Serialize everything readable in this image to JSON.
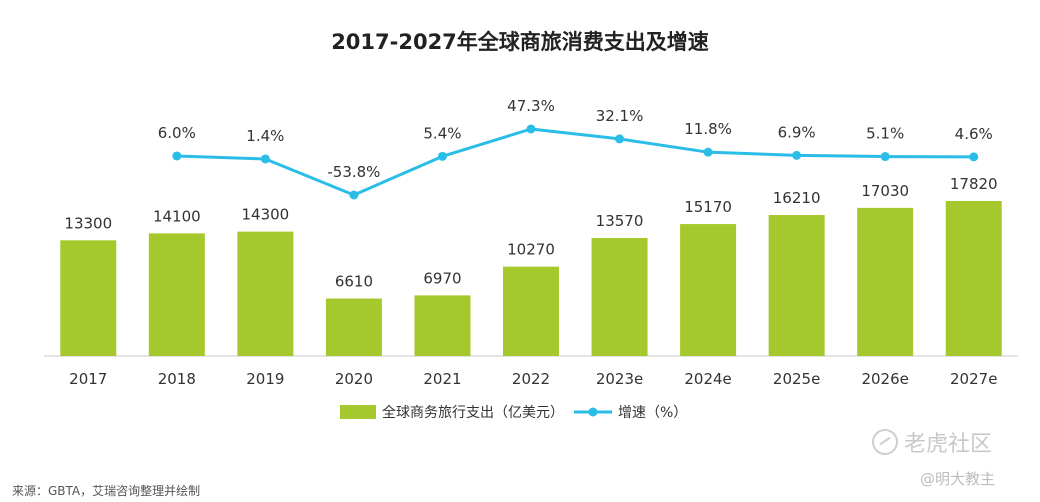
{
  "chart_data": {
    "type": "bar+line",
    "title": "2017-2027年全球商旅消费支出及增速",
    "categories": [
      "2017",
      "2018",
      "2019",
      "2020",
      "2021",
      "2022",
      "2023e",
      "2024e",
      "2025e",
      "2026e",
      "2027e"
    ],
    "series": [
      {
        "name": "全球商务旅行支出（亿美元）",
        "type": "bar",
        "values": [
          13300,
          14100,
          14300,
          6610,
          6970,
          10270,
          13570,
          15170,
          16210,
          17030,
          17820
        ],
        "labels": [
          "13300",
          "14100",
          "14300",
          "6610",
          "6970",
          "10270",
          "13570",
          "15170",
          "16210",
          "17030",
          "17820"
        ]
      },
      {
        "name": "增速（%）",
        "type": "line",
        "values": [
          null,
          6.0,
          1.4,
          -53.8,
          5.4,
          47.3,
          32.1,
          11.8,
          6.9,
          5.1,
          4.6
        ],
        "labels": [
          "",
          "6.0%",
          "1.4%",
          "-53.8%",
          "5.4%",
          "47.3%",
          "32.1%",
          "11.8%",
          "6.9%",
          "5.1%",
          "4.6%"
        ]
      }
    ],
    "bar_axis_range": [
      0,
      20000
    ],
    "line_axis_range": [
      -60,
      60
    ],
    "grid": false,
    "legend_position": "bottom"
  },
  "colors": {
    "bar": "#a5c92d",
    "line": "#29bde8",
    "axis": "#c8c8c8"
  },
  "footer": {
    "source": "来源：GBTA，艾瑞咨询整理并绘制"
  },
  "watermark": {
    "line1": "老虎社区",
    "line2": "@明大教主"
  }
}
